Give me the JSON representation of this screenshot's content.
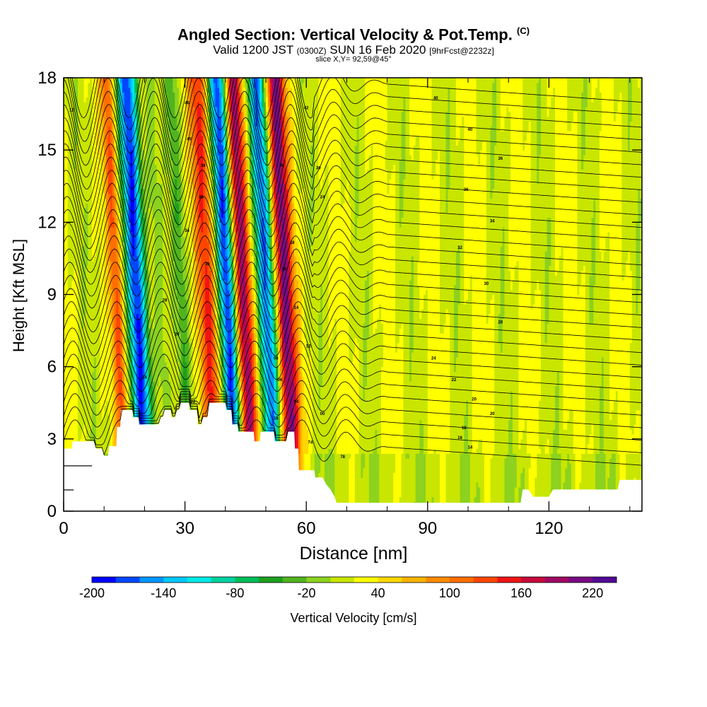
{
  "header": {
    "title": "Angled Section: Vertical Velocity & Pot.Temp.",
    "title_unit": "(C)",
    "valid_prefix": "Valid 1200 JST",
    "valid_zulu": "(0300Z)",
    "valid_date": "SUN 16 Feb 2020",
    "forecast": "[9hrFcst@2232z]",
    "slice": "slice X,Y= 92,59@45°"
  },
  "chart_data": {
    "type": "heatmap",
    "xlabel": "Distance [nm]",
    "ylabel": "Height [Kft MSL]",
    "xlim": [
      0,
      143
    ],
    "ylim": [
      0,
      18
    ],
    "x_ticks": [
      0,
      30,
      60,
      90,
      120
    ],
    "y_ticks": [
      0,
      3,
      6,
      9,
      12,
      15,
      18
    ],
    "colorbar": {
      "label": "Vertical Velocity [cm/s]",
      "range": [
        -200,
        240
      ],
      "tick_labels": [
        -200,
        -140,
        -80,
        -20,
        40,
        100,
        160,
        220
      ],
      "colors": [
        "#0000ff",
        "#0046ff",
        "#0096ff",
        "#00c8ff",
        "#00ebe6",
        "#00d2a0",
        "#00be5a",
        "#1ea01e",
        "#50b41e",
        "#8cd21e",
        "#c8e600",
        "#ffff00",
        "#ffd700",
        "#ffb400",
        "#ff8c00",
        "#ff6e00",
        "#ff4600",
        "#f01414",
        "#c80a3c",
        "#a00a64",
        "#780a82",
        "#500a96"
      ]
    },
    "updraft_bands": [
      {
        "x": 13,
        "w": 100,
        "label": "updraft"
      },
      {
        "x": 35.5,
        "w": 120,
        "label": "updraft"
      },
      {
        "x": 44,
        "w": 180,
        "label": "updraft"
      },
      {
        "x": 54.5,
        "w": 190,
        "label": "updraft"
      }
    ],
    "downdraft_bands": [
      {
        "x": 18,
        "w": -190
      },
      {
        "x": 23.5,
        "w": -40
      },
      {
        "x": 29,
        "w": -40
      },
      {
        "x": 40.5,
        "w": -200
      },
      {
        "x": 50,
        "w": -170
      }
    ],
    "terrain_kft": [
      [
        0,
        2.6
      ],
      [
        2,
        2.6
      ],
      [
        2.2,
        2.9
      ],
      [
        7.5,
        2.9
      ],
      [
        8,
        2.6
      ],
      [
        9.5,
        2.6
      ],
      [
        10,
        2.3
      ],
      [
        11,
        2.3
      ],
      [
        11.2,
        2.7
      ],
      [
        13,
        2.7
      ],
      [
        13.2,
        3.5
      ],
      [
        14,
        3.5
      ],
      [
        14.2,
        4.2
      ],
      [
        17,
        4.2
      ],
      [
        17.2,
        3.9
      ],
      [
        18.5,
        3.9
      ],
      [
        18.7,
        3.6
      ],
      [
        23.5,
        3.6
      ],
      [
        23.7,
        3.9
      ],
      [
        24.5,
        3.9
      ],
      [
        24.7,
        4.2
      ],
      [
        26.5,
        4.2
      ],
      [
        26.7,
        3.9
      ],
      [
        27.5,
        3.9
      ],
      [
        27.7,
        4.2
      ],
      [
        28.5,
        4.2
      ],
      [
        28.7,
        4.5
      ],
      [
        31,
        4.5
      ],
      [
        31.2,
        4.2
      ],
      [
        33,
        4.2
      ],
      [
        33.2,
        3.6
      ],
      [
        34,
        3.6
      ],
      [
        34.2,
        3.9
      ],
      [
        35.5,
        3.9
      ],
      [
        35.7,
        4.5
      ],
      [
        40,
        4.5
      ],
      [
        40.2,
        4.2
      ],
      [
        41.5,
        4.2
      ],
      [
        41.7,
        3.6
      ],
      [
        43,
        3.6
      ],
      [
        43.2,
        3.3
      ],
      [
        47,
        3.3
      ],
      [
        47.2,
        2.9
      ],
      [
        48.5,
        2.9
      ],
      [
        48.7,
        3.3
      ],
      [
        52,
        3.3
      ],
      [
        52.2,
        2.9
      ],
      [
        55,
        2.9
      ],
      [
        55.2,
        3.3
      ],
      [
        57,
        3.3
      ],
      [
        57.2,
        2.6
      ],
      [
        58,
        2.6
      ],
      [
        58.2,
        1.7
      ],
      [
        62,
        1.7
      ],
      [
        62.2,
        1.4
      ],
      [
        64,
        1.4
      ],
      [
        65,
        1.1
      ],
      [
        66,
        0.9
      ],
      [
        67,
        0.6
      ],
      [
        67.5,
        0.35
      ],
      [
        113,
        0.35
      ],
      [
        113.5,
        0.9
      ],
      [
        115,
        0.9
      ],
      [
        116,
        0.6
      ],
      [
        120,
        0.6
      ],
      [
        121,
        0.9
      ],
      [
        137,
        0.9
      ],
      [
        137.5,
        1.3
      ],
      [
        143,
        1.3
      ]
    ],
    "theta_contour_labels": [
      {
        "x": 2,
        "y": 16.6,
        "text": "12"
      },
      {
        "x": 30.5,
        "y": 16.9,
        "text": "46"
      },
      {
        "x": 31,
        "y": 15.4,
        "text": "40"
      },
      {
        "x": 34.5,
        "y": 14.3,
        "text": "38"
      },
      {
        "x": 34,
        "y": 13,
        "text": "36"
      },
      {
        "x": 30.5,
        "y": 11.6,
        "text": "34"
      },
      {
        "x": 35.5,
        "y": 10.2,
        "text": "30"
      },
      {
        "x": 25,
        "y": 8.7,
        "text": "28"
      },
      {
        "x": 28,
        "y": 7.3,
        "text": "26"
      },
      {
        "x": 20,
        "y": 5.5,
        "text": "24"
      },
      {
        "x": 32,
        "y": 4.5,
        "text": "22"
      },
      {
        "x": 60,
        "y": 16.7,
        "text": "42"
      },
      {
        "x": 54,
        "y": 14.3,
        "text": "40"
      },
      {
        "x": 63,
        "y": 14.2,
        "text": "30"
      },
      {
        "x": 64,
        "y": 13,
        "text": "24"
      },
      {
        "x": 56.5,
        "y": 11.1,
        "text": "18"
      },
      {
        "x": 54.5,
        "y": 10,
        "text": "10"
      },
      {
        "x": 57.5,
        "y": 8.4,
        "text": "14"
      },
      {
        "x": 60.5,
        "y": 6.8,
        "text": "12"
      },
      {
        "x": 52.5,
        "y": 6.3,
        "text": "08"
      },
      {
        "x": 53.5,
        "y": 5.4,
        "text": "06"
      },
      {
        "x": 57.5,
        "y": 4.5,
        "text": "04"
      },
      {
        "x": 52.5,
        "y": 3.8,
        "text": "16"
      },
      {
        "x": 64,
        "y": 4,
        "text": "00"
      },
      {
        "x": 61,
        "y": 2.8,
        "text": "74"
      },
      {
        "x": 69,
        "y": 2.2,
        "text": "78"
      },
      {
        "x": 92,
        "y": 17.1,
        "text": "40"
      },
      {
        "x": 100.5,
        "y": 15.8,
        "text": "40"
      },
      {
        "x": 108,
        "y": 14.6,
        "text": "36"
      },
      {
        "x": 99.5,
        "y": 13.3,
        "text": "36"
      },
      {
        "x": 106,
        "y": 12,
        "text": "34"
      },
      {
        "x": 98,
        "y": 10.9,
        "text": "32"
      },
      {
        "x": 104.5,
        "y": 9.4,
        "text": "30"
      },
      {
        "x": 108,
        "y": 7.8,
        "text": "28"
      },
      {
        "x": 91.5,
        "y": 6.3,
        "text": "24"
      },
      {
        "x": 96.5,
        "y": 5.4,
        "text": "22"
      },
      {
        "x": 101.5,
        "y": 4.6,
        "text": "20"
      },
      {
        "x": 106,
        "y": 4,
        "text": "20"
      },
      {
        "x": 99,
        "y": 3.4,
        "text": "18"
      },
      {
        "x": 98,
        "y": 3,
        "text": "16"
      },
      {
        "x": 100.5,
        "y": 2.6,
        "text": "14"
      }
    ]
  }
}
